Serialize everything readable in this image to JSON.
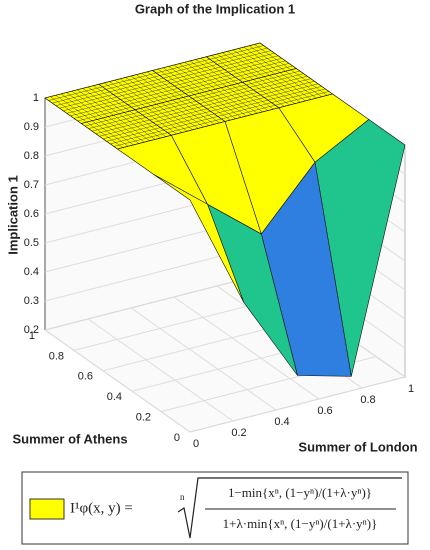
{
  "chart_data": {
    "type": "surface",
    "title": "Graph of the Implication 1",
    "zlabel": "Implication 1",
    "xlabel": "Summer of London",
    "ylabel": "Summer of Athens",
    "x": [
      0,
      0.25,
      0.5,
      0.75,
      1
    ],
    "y": [
      0,
      0.25,
      0.5,
      0.75,
      1
    ],
    "z": [
      [
        1,
        0.6,
        0.3,
        0.25,
        1
      ],
      [
        1,
        0.85,
        0.7,
        0.9,
        1
      ],
      [
        1,
        1,
        1,
        1,
        1
      ],
      [
        1,
        1,
        1,
        1,
        1
      ],
      [
        1,
        1,
        1,
        1,
        1
      ]
    ],
    "colors": [
      "#3b2fae",
      "#2e7fe0",
      "#1fc58c",
      "#ffff00"
    ],
    "xlim": [
      0,
      1
    ],
    "ylim": [
      0,
      1
    ],
    "zlim": [
      0.2,
      1
    ],
    "xticks": [
      0,
      0.2,
      0.4,
      0.6,
      0.8,
      1
    ],
    "yticks": [
      0,
      0.2,
      0.4,
      0.6,
      0.8,
      1
    ],
    "zticks": [
      0.2,
      0.3,
      0.4,
      0.5,
      0.6,
      0.7,
      0.8,
      0.9,
      1
    ],
    "grid": true,
    "legend": {
      "lhs": "I¹φ(x, y) =",
      "root_index": "n",
      "numerator": "1−min{xⁿ, (1−yⁿ)/(1+λ·yⁿ)}",
      "denominator": "1+λ·min{xⁿ, (1−yⁿ)/(1+λ·yⁿ)}"
    }
  }
}
